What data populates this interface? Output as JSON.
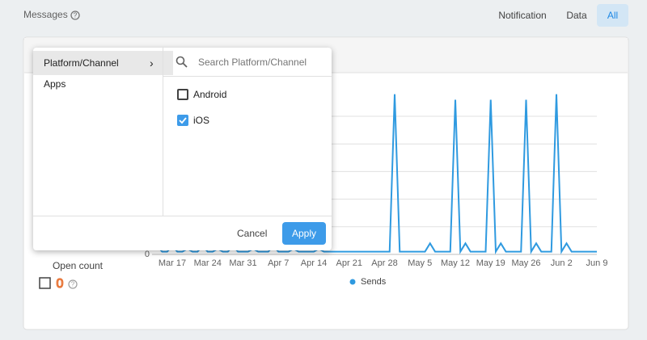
{
  "header": {
    "title": "Messages",
    "tabs": [
      "Notification",
      "Data",
      "All"
    ],
    "active_tab": 2
  },
  "filter": {
    "menu": [
      "Platform/Channel",
      "Apps"
    ],
    "search_placeholder": "Search Platform/Channel",
    "options": [
      {
        "label": "Android",
        "checked": false
      },
      {
        "label": "iOS",
        "checked": true
      }
    ],
    "buttons": {
      "cancel": "Cancel",
      "apply": "Apply"
    }
  },
  "summary": {
    "label": "Open count",
    "value": 0
  },
  "chart_data": {
    "type": "line",
    "x": [
      "Mar 13",
      "Mar 14",
      "Mar 15",
      "Mar 16",
      "Mar 17",
      "Mar 18",
      "Mar 19",
      "Mar 20",
      "Mar 21",
      "Mar 22",
      "Mar 23",
      "Mar 24",
      "Mar 25",
      "Mar 26",
      "Mar 27",
      "Mar 28",
      "Mar 29",
      "Mar 30",
      "Mar 31",
      "Apr 1",
      "Apr 2",
      "Apr 3",
      "Apr 4",
      "Apr 5",
      "Apr 6",
      "Apr 7",
      "Apr 8",
      "Apr 9",
      "Apr 10",
      "Apr 11",
      "Apr 12",
      "Apr 13",
      "Apr 14",
      "Apr 15",
      "Apr 16",
      "Apr 17",
      "Apr 18",
      "Apr 19",
      "Apr 20",
      "Apr 21",
      "Apr 22",
      "Apr 23",
      "Apr 24",
      "Apr 25",
      "Apr 26",
      "Apr 27",
      "Apr 28",
      "Apr 29",
      "Apr 30",
      "May 1",
      "May 2",
      "May 3",
      "May 4",
      "May 5",
      "May 6",
      "May 7",
      "May 8",
      "May 9",
      "May 10",
      "May 11",
      "May 12",
      "May 13",
      "May 14",
      "May 15",
      "May 16",
      "May 17",
      "May 18",
      "May 19",
      "May 20",
      "May 21",
      "May 22",
      "May 23",
      "May 24",
      "May 25",
      "May 26",
      "May 27",
      "May 28",
      "May 29",
      "May 30",
      "May 31",
      "Jun 1",
      "Jun 2",
      "Jun 3",
      "Jun 4",
      "Jun 5",
      "Jun 6",
      "Jun 7",
      "Jun 8",
      "Jun 9"
    ],
    "series": [
      {
        "name": "Sends",
        "color": "#2f9ae0",
        "values": [
          0.2,
          0.3,
          0.1,
          0.1,
          0.3,
          0.1,
          0.1,
          0.2,
          0.1,
          0.1,
          0.3,
          0.1,
          0.1,
          0.2,
          0.1,
          0.1,
          0.3,
          0.1,
          0.1,
          0.1,
          0.2,
          0.1,
          0.1,
          0.1,
          0.3,
          0.1,
          0.1,
          0.1,
          0.2,
          0.1,
          0.1,
          0.1,
          0.1,
          0.2,
          0.1,
          0.1,
          0.1,
          0.1,
          0.1,
          0.1,
          0.1,
          0.1,
          0.1,
          0.1,
          0.1,
          0.1,
          0.1,
          0.1,
          5.8,
          0.1,
          0.1,
          0.1,
          0.1,
          0.1,
          0.1,
          0.4,
          0.1,
          0.1,
          0.1,
          0.1,
          5.6,
          0.1,
          0.4,
          0.1,
          0.1,
          0.1,
          0.1,
          5.6,
          0.1,
          0.4,
          0.1,
          0.1,
          0.1,
          0.1,
          5.6,
          0.1,
          0.4,
          0.1,
          0.1,
          0.1,
          5.8,
          0.1,
          0.4,
          0.1,
          0.1,
          0.1,
          0.1,
          0.1,
          0.1
        ]
      }
    ],
    "xticks": [
      "Mar 17",
      "Mar 24",
      "Mar 31",
      "Apr 7",
      "Apr 14",
      "Apr 21",
      "Apr 28",
      "May 5",
      "May 12",
      "May 19",
      "May 26",
      "Jun 2",
      "Jun 9"
    ],
    "ylim": [
      0,
      6
    ],
    "yticks": [
      0
    ],
    "ygrid": [
      1,
      2,
      3,
      4,
      5
    ],
    "grid": true
  }
}
